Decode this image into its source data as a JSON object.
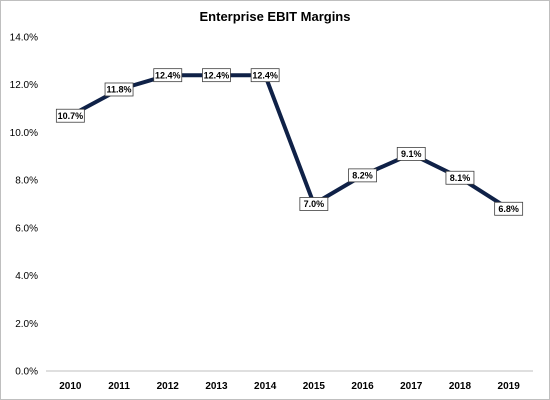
{
  "chart_data": {
    "type": "line",
    "title": "Enterprise EBIT Margins",
    "xlabel": "",
    "ylabel": "",
    "categories": [
      "2010",
      "2011",
      "2012",
      "2013",
      "2014",
      "2015",
      "2016",
      "2017",
      "2018",
      "2019"
    ],
    "values": [
      10.7,
      11.8,
      12.4,
      12.4,
      12.4,
      7.0,
      8.2,
      9.1,
      8.1,
      6.8
    ],
    "data_labels": [
      "10.7%",
      "11.8%",
      "12.4%",
      "12.4%",
      "12.4%",
      "7.0%",
      "8.2%",
      "9.1%",
      "8.1%",
      "6.8%"
    ],
    "ylim": [
      0,
      14
    ],
    "yticks": [
      0,
      2,
      4,
      6,
      8,
      10,
      12,
      14
    ],
    "ytick_labels": [
      "0.0%",
      "2.0%",
      "4.0%",
      "6.0%",
      "8.0%",
      "10.0%",
      "12.0%",
      "14.0%"
    ],
    "grid": false,
    "legend": "none",
    "line_color": "#0f2147"
  }
}
